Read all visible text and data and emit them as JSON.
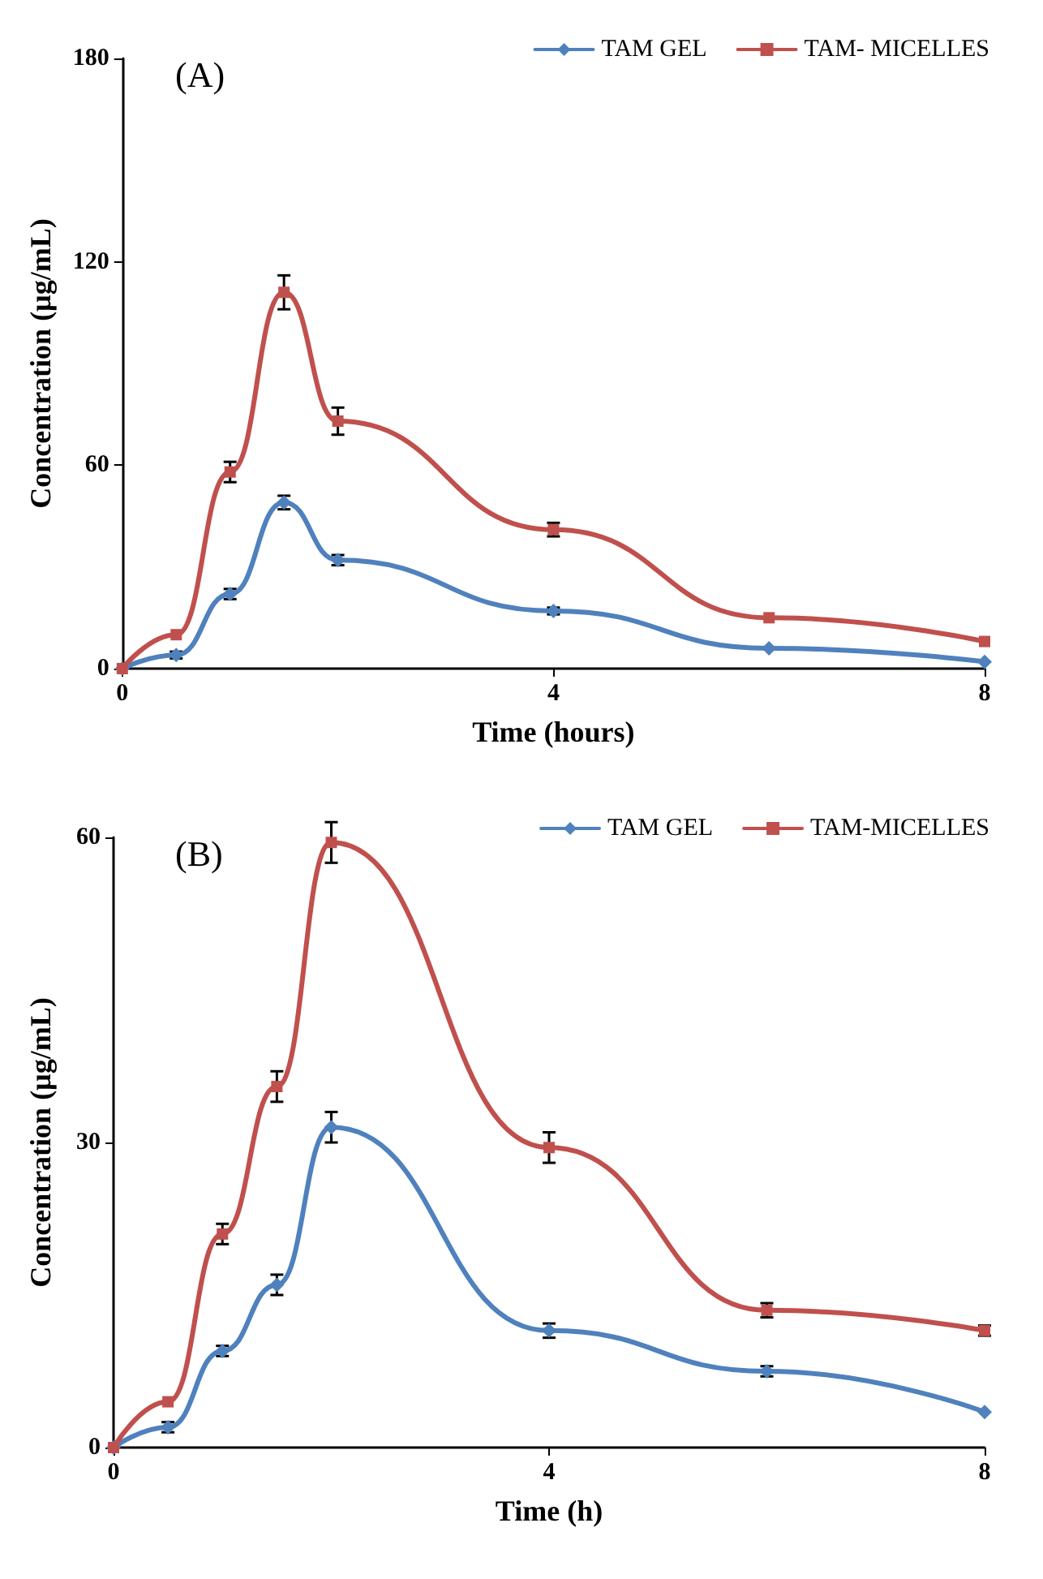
{
  "chart_data": [
    {
      "type": "line",
      "title": "(A)",
      "xlabel": "Time (hours)",
      "ylabel": "Concentration (µg/mL)",
      "x": [
        0,
        0.5,
        1,
        1.5,
        2,
        4,
        6,
        8
      ],
      "xlim": [
        0,
        8
      ],
      "xticks": [
        0,
        4,
        8
      ],
      "ylim": [
        0,
        180
      ],
      "yticks": [
        0,
        60,
        120,
        180
      ],
      "grid": false,
      "legend": "top right",
      "series": [
        {
          "name": "TAM GEL",
          "color": "#4f81bd",
          "marker": "diamond",
          "values": [
            0,
            4,
            22,
            49,
            32,
            17,
            6,
            2
          ],
          "errors": [
            null,
            1,
            1.5,
            2,
            1.5,
            1,
            null,
            null
          ]
        },
        {
          "name": "TAM- MICELLES",
          "color": "#c0504d",
          "marker": "square",
          "values": [
            0,
            10,
            58,
            111,
            73,
            41,
            15,
            8
          ],
          "errors": [
            null,
            null,
            3,
            5,
            4,
            2,
            null,
            null
          ]
        }
      ]
    },
    {
      "type": "line",
      "title": "(B)",
      "xlabel": "Time (h)",
      "ylabel": "Concentration (µg/mL)",
      "x": [
        0,
        0.5,
        1,
        1.5,
        2,
        4,
        6,
        8
      ],
      "xlim": [
        0,
        8
      ],
      "xticks": [
        0,
        4,
        8
      ],
      "ylim": [
        0,
        60
      ],
      "yticks": [
        0,
        30,
        60
      ],
      "grid": false,
      "legend": "top right",
      "series": [
        {
          "name": "TAM GEL",
          "color": "#4f81bd",
          "marker": "diamond",
          "values": [
            0,
            2,
            9.5,
            16,
            31.5,
            11.5,
            7.5,
            3.5
          ],
          "errors": [
            null,
            0.5,
            0.5,
            1,
            1.5,
            0.7,
            0.5,
            null
          ]
        },
        {
          "name": "TAM-MICELLES",
          "color": "#c0504d",
          "marker": "square",
          "values": [
            0,
            4.5,
            21,
            35.5,
            59.5,
            29.5,
            13.5,
            11.5
          ],
          "errors": [
            null,
            null,
            1,
            1.5,
            2,
            1.5,
            0.7,
            0.5
          ]
        }
      ]
    }
  ]
}
